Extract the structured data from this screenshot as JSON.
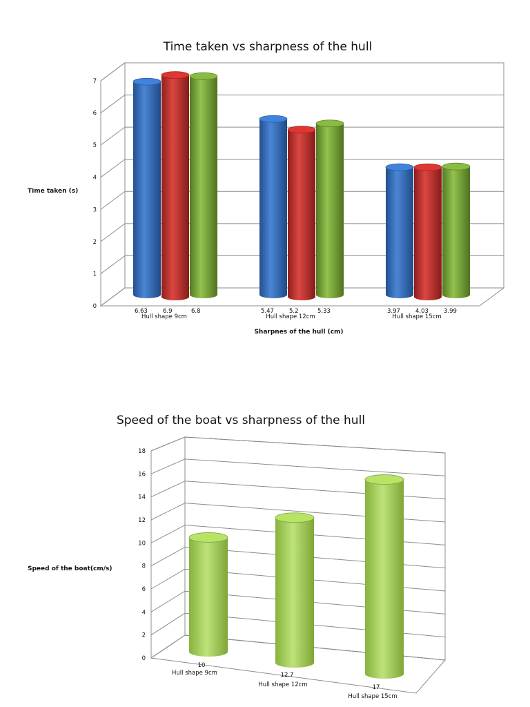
{
  "chart_data": [
    {
      "type": "bar",
      "title": "Time taken vs sharpness of the hull",
      "xlabel": "Sharpnes of the hull (cm)",
      "ylabel": "Time taken (s)",
      "ylim": [
        0,
        7
      ],
      "yticks": [
        "0",
        "1",
        "2",
        "3",
        "4",
        "5",
        "6",
        "7"
      ],
      "categories": [
        "Hull shape 9cm",
        "Hull shape 12cm",
        "Hull shape 15cm"
      ],
      "series": [
        {
          "values": [
            6.63,
            5.47,
            3.97
          ],
          "labels": [
            "6.63",
            "5.47",
            "3.97"
          ],
          "color": "#3a74c4"
        },
        {
          "values": [
            6.9,
            5.2,
            4.03
          ],
          "labels": [
            "6.9",
            "5.2",
            "4.03"
          ],
          "color": "#c8302c"
        },
        {
          "values": [
            6.8,
            5.33,
            3.99
          ],
          "labels": [
            "6.8",
            "5.33",
            "3.99"
          ],
          "color": "#7aa83a"
        }
      ],
      "grid": true,
      "legend": "none"
    },
    {
      "type": "bar",
      "title": "Speed of the boat vs sharpness of the hull",
      "xlabel": "",
      "ylabel": "Speed of the boat(cm/s)",
      "ylim": [
        0,
        18
      ],
      "yticks": [
        "0",
        "2",
        "4",
        "6",
        "8",
        "10",
        "12",
        "14",
        "16",
        "18"
      ],
      "categories": [
        "Hull shape 9cm",
        "Hull shape 12cm",
        "Hull shape 15cm"
      ],
      "series": [
        {
          "values": [
            10,
            12.7,
            17
          ],
          "labels": [
            "10",
            "12.7",
            "17"
          ],
          "color": "#a3cc5a"
        }
      ],
      "grid": true,
      "legend": "none"
    }
  ]
}
